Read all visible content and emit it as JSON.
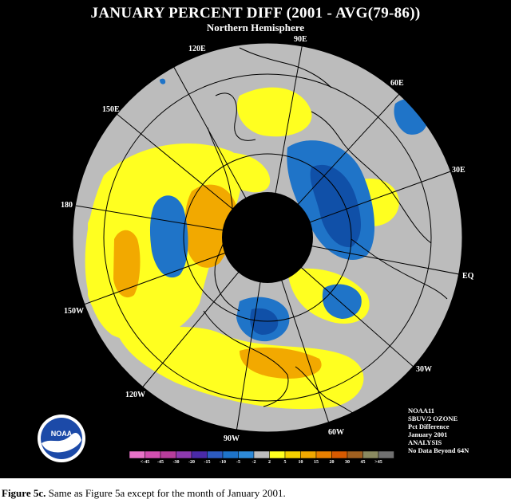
{
  "title": "JANUARY PERCENT DIFF (2001 - AVG(79-86))",
  "subtitle": "Northern Hemisphere",
  "longitude_labels": [
    "120E",
    "90E",
    "60E",
    "150E",
    "30E",
    "180",
    "EQ",
    "150W",
    "30W",
    "120W",
    "60W",
    "90W"
  ],
  "info_block": [
    "NOAA11",
    "SBUV/2 OZONE",
    "Pct Difference",
    "January 2001",
    "ANALYSIS",
    "No Data Beyond 64N"
  ],
  "logo": {
    "text": "NOAA",
    "icon": "noaa-logo-icon"
  },
  "legend": {
    "labels": [
      "<-45",
      "-45",
      "-30",
      "-20",
      "-15",
      "-10",
      "-5",
      "-2",
      "2",
      "5",
      "10",
      "15",
      "20",
      "30",
      "45",
      ">45"
    ],
    "colors": [
      "#e872c8",
      "#d34fb0",
      "#b83d9c",
      "#8e3ab0",
      "#4a2aa8",
      "#2d5bc0",
      "#1e73c8",
      "#2e8ad8",
      "#bdbdbd",
      "#ffff20",
      "#f5d000",
      "#f0a800",
      "#e88000",
      "#d85a00",
      "#a06020",
      "#8a8a60",
      "#707070"
    ],
    "no_data_label": "No Data Beyond 64N"
  },
  "palette": {
    "gray": "#bcbcbc",
    "yellow": "#ffff20",
    "orange": "#f2a900",
    "blue": "#1f74c8",
    "dark_blue": "#1050a8",
    "background": "#000000"
  },
  "caption": {
    "label": "Figure 5c.",
    "text": " Same as Figure 5a except for the month of January 2001."
  }
}
